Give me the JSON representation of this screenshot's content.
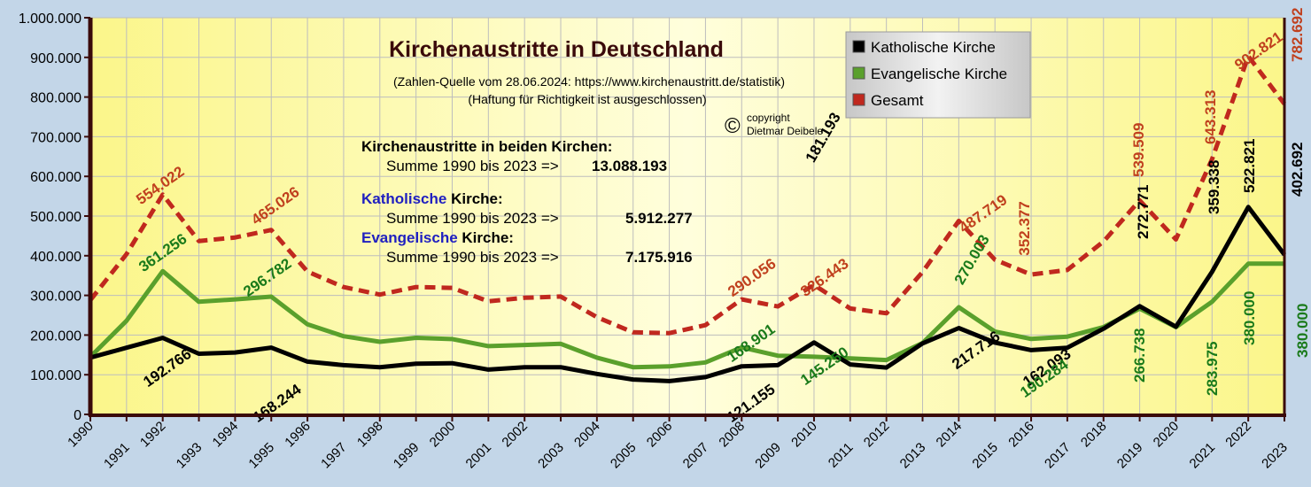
{
  "chart_data": {
    "type": "line",
    "title": "Kirchenaustritte in Deutschland",
    "subtitle": "(Zahlen-Quelle vom 28.06.2024: https://www.kirchenaustritt.de/statistik)",
    "disclaimer": "(Haftung für Richtigkeit ist ausgeschlossen)",
    "copyright": {
      "symbol": "©",
      "line1": "copyright",
      "line2": "Dietmar Deibele"
    },
    "x": [
      "1990",
      "1991",
      "1992",
      "1993",
      "1994",
      "1995",
      "1996",
      "1997",
      "1998",
      "1999",
      "2000",
      "2001",
      "2002",
      "2003",
      "2004",
      "2005",
      "2006",
      "2007",
      "2008",
      "2009",
      "2010",
      "2011",
      "2012",
      "2013",
      "2014",
      "2015",
      "2016",
      "2017",
      "2018",
      "2019",
      "2020",
      "2021",
      "2022",
      "2023"
    ],
    "ylim": [
      0,
      1000000
    ],
    "yticks": [
      0,
      100000,
      200000,
      300000,
      400000,
      500000,
      600000,
      700000,
      800000,
      900000,
      1000000
    ],
    "ytick_labels": [
      "0",
      "100.000",
      "200.000",
      "300.000",
      "400.000",
      "500.000",
      "600.000",
      "700.000",
      "800.000",
      "900.000",
      "1.000.000"
    ],
    "grid": true,
    "legend_position": "top-right",
    "series": [
      {
        "name": "Katholische Kirche",
        "color": "#000000",
        "style": "solid",
        "values": [
          143000,
          168000,
          192766,
          153000,
          156000,
          168244,
          133000,
          124000,
          119000,
          128000,
          129000,
          113000,
          119000,
          119000,
          102000,
          88000,
          84000,
          94000,
          121155,
          124000,
          181193,
          126000,
          118000,
          179000,
          217716,
          181000,
          162093,
          168000,
          216000,
          272771,
          221000,
          359338,
          522821,
          402692
        ]
      },
      {
        "name": "Evangelische Kirche",
        "color": "#5aa02c",
        "style": "solid",
        "values": [
          145000,
          236000,
          361256,
          284000,
          290000,
          296782,
          227000,
          197000,
          183000,
          193000,
          190000,
          172000,
          175000,
          178000,
          143000,
          119000,
          121000,
          131000,
          168901,
          148000,
          145250,
          141000,
          137000,
          180000,
          270003,
          209000,
          190284,
          196000,
          220000,
          266738,
          220000,
          283975,
          380000,
          380000
        ]
      },
      {
        "name": "Gesamt",
        "color": "#c0281e",
        "style": "dashed",
        "values": [
          288000,
          404000,
          554022,
          437000,
          446000,
          465026,
          360000,
          321000,
          302000,
          321000,
          319000,
          285000,
          294000,
          297000,
          245000,
          207000,
          205000,
          225000,
          290056,
          272000,
          326443,
          267000,
          255000,
          359000,
          487719,
          390000,
          352377,
          364000,
          436000,
          539509,
          441000,
          643313,
          902821,
          782692
        ]
      }
    ],
    "data_labels": [
      {
        "series": "Katholische Kirche",
        "year": "1992",
        "text": "192.766"
      },
      {
        "series": "Katholische Kirche",
        "year": "1995",
        "text": "168.244"
      },
      {
        "series": "Katholische Kirche",
        "year": "2008",
        "text": "121.155"
      },
      {
        "series": "Katholische Kirche",
        "year": "2010",
        "text": "181.193"
      },
      {
        "series": "Katholische Kirche",
        "year": "2014",
        "text": "217.716"
      },
      {
        "series": "Katholische Kirche",
        "year": "2016",
        "text": "162.093"
      },
      {
        "series": "Katholische Kirche",
        "year": "2019",
        "text": "272.771"
      },
      {
        "series": "Katholische Kirche",
        "year": "2021",
        "text": "359.338"
      },
      {
        "series": "Katholische Kirche",
        "year": "2022",
        "text": "522.821"
      },
      {
        "series": "Katholische Kirche",
        "year": "2023",
        "text": "402.692"
      },
      {
        "series": "Evangelische Kirche",
        "year": "1992",
        "text": "361.256"
      },
      {
        "series": "Evangelische Kirche",
        "year": "1995",
        "text": "296.782"
      },
      {
        "series": "Evangelische Kirche",
        "year": "2008",
        "text": "168.901"
      },
      {
        "series": "Evangelische Kirche",
        "year": "2010",
        "text": "145.250"
      },
      {
        "series": "Evangelische Kirche",
        "year": "2014",
        "text": "270.003"
      },
      {
        "series": "Evangelische Kirche",
        "year": "2016",
        "text": "190.284"
      },
      {
        "series": "Evangelische Kirche",
        "year": "2019",
        "text": "266.738"
      },
      {
        "series": "Evangelische Kirche",
        "year": "2021",
        "text": "283.975"
      },
      {
        "series": "Evangelische Kirche",
        "year": "2022",
        "text": "380.000"
      },
      {
        "series": "Evangelische Kirche",
        "year": "2023",
        "text": "380.000"
      },
      {
        "series": "Gesamt",
        "year": "1992",
        "text": "554.022"
      },
      {
        "series": "Gesamt",
        "year": "1995",
        "text": "465.026"
      },
      {
        "series": "Gesamt",
        "year": "2008",
        "text": "290.056"
      },
      {
        "series": "Gesamt",
        "year": "2010",
        "text": "326.443"
      },
      {
        "series": "Gesamt",
        "year": "2014",
        "text": "487.719"
      },
      {
        "series": "Gesamt",
        "year": "2016",
        "text": "352.377"
      },
      {
        "series": "Gesamt",
        "year": "2019",
        "text": "539.509"
      },
      {
        "series": "Gesamt",
        "year": "2021",
        "text": "643.313"
      },
      {
        "series": "Gesamt",
        "year": "2022",
        "text": "902.821"
      },
      {
        "series": "Gesamt",
        "year": "2023",
        "text": "782.692"
      }
    ],
    "summary": {
      "both_heading": "Kirchenaustritte in beiden Kirchen:",
      "both_label": "Summe 1990 bis 2023 =>",
      "both_value": "13.088.193",
      "kath_name": "Katholische",
      "kath_suffix": " Kirche:",
      "kath_label": "Summe 1990 bis 2023 =>",
      "kath_value": "5.912.277",
      "evang_name": "Evangelische",
      "evang_suffix": " Kirche:",
      "evang_label": "Summe 1990 bis 2023 =>",
      "evang_value": "7.175.916"
    }
  }
}
